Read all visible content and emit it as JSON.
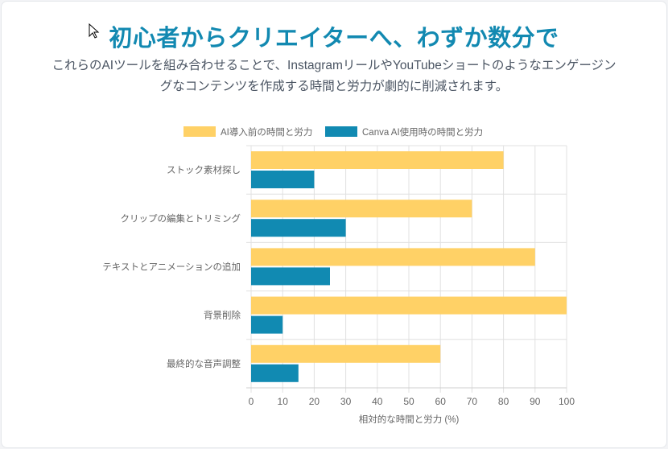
{
  "header": {
    "title": "初心者からクリエイターへ、わずか数分で",
    "subtitle": "これらのAIツールを組み合わせることで、InstagramリールやYouTubeショートのようなエンゲージングなコンテンツを作成する時間と労力が劇的に削減されます。"
  },
  "chart_data": {
    "type": "bar",
    "orientation": "horizontal",
    "categories": [
      "ストック素材探し",
      "クリップの編集とトリミング",
      "テキストとアニメーションの追加",
      "背景削除",
      "最終的な音声調整"
    ],
    "series": [
      {
        "name": "AI導入前の時間と労力",
        "color": "#ffd166",
        "values": [
          80,
          70,
          90,
          100,
          60
        ]
      },
      {
        "name": "Canva AI使用時の時間と労力",
        "color": "#118ab2",
        "values": [
          20,
          30,
          25,
          10,
          15
        ]
      }
    ],
    "xlabel": "相対的な時間と労力 (%)",
    "ylabel": "",
    "xlim": [
      0,
      100
    ],
    "xticks": [
      "0",
      "10",
      "20",
      "30",
      "40",
      "50",
      "60",
      "70",
      "80",
      "90",
      "100"
    ],
    "grid": true,
    "legend": "top"
  }
}
